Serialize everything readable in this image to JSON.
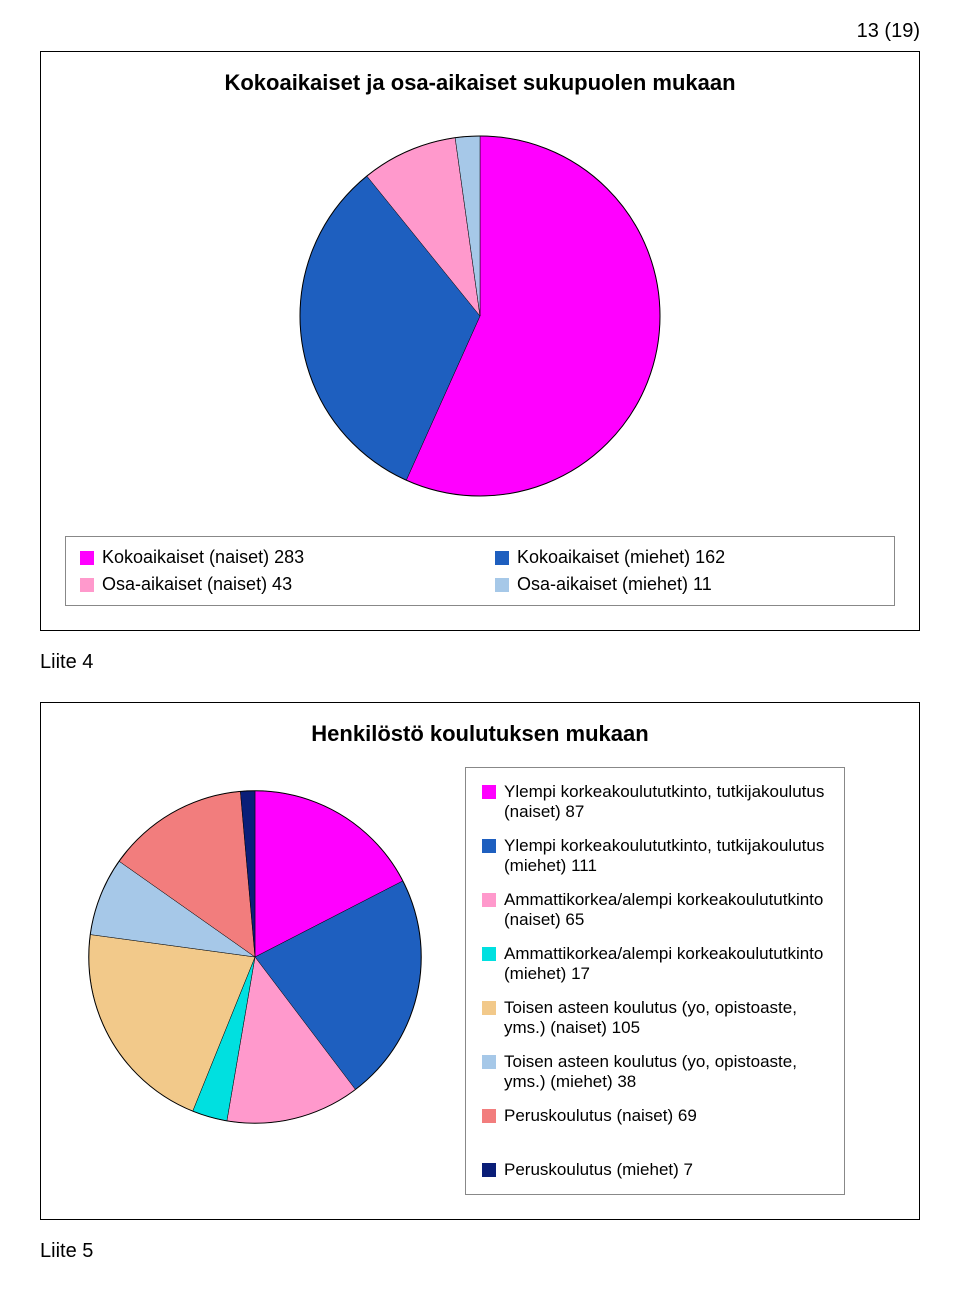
{
  "page_number": "13 (19)",
  "liite4": "Liite 4",
  "liite5": "Liite 5",
  "chart1": {
    "type": "pie",
    "title": "Kokoaikaiset ja osa-aikaiset sukupuolen mukaan",
    "radius": 180,
    "background_color": "#ffffff",
    "border_color": "#000000",
    "legend_border": "#888888",
    "label_fontsize": 18,
    "title_fontsize": 22,
    "segments": [
      {
        "label": "Kokoaikaiset (naiset)  283",
        "value": 283,
        "color": "#ff00ff"
      },
      {
        "label": "Kokoaikaiset (miehet)  162",
        "value": 162,
        "color": "#1e5fbf"
      },
      {
        "label": "Osa-aikaiset (naiset)  43",
        "value": 43,
        "color": "#ff99cc"
      },
      {
        "label": "Osa-aikaiset (miehet)  11",
        "value": 11,
        "color": "#a6c8e8"
      }
    ],
    "legend_order": [
      0,
      1,
      2,
      3
    ],
    "start_angle_deg": 0
  },
  "chart2": {
    "type": "pie",
    "title": "Henkilöstö koulutuksen mukaan",
    "radius": 175,
    "background_color": "#ffffff",
    "border_color": "#000000",
    "legend_border": "#888888",
    "label_fontsize": 17,
    "title_fontsize": 22,
    "segments": [
      {
        "label": "Ylempi korkeakoulututkinto, tutkijakoulutus (naiset)  87",
        "value": 87,
        "color": "#ff00ff"
      },
      {
        "label": "Ylempi korkeakoulututkinto, tutkijakoulutus (miehet) 111",
        "value": 111,
        "color": "#1e5fbf"
      },
      {
        "label": "Ammattikorkea/alempi korkeakoulututkinto (naiset) 65",
        "value": 65,
        "color": "#ff99cc"
      },
      {
        "label": "Ammattikorkea/alempi korkeakoulututkinto (miehet) 17",
        "value": 17,
        "color": "#00e0e0"
      },
      {
        "label": "Toisen asteen koulutus (yo, opistoaste, yms.) (naiset) 105",
        "value": 105,
        "color": "#f2c98a"
      },
      {
        "label": "Toisen asteen koulutus (yo, opistoaste, yms.) (miehet) 38",
        "value": 38,
        "color": "#a6c8e8"
      },
      {
        "label": "Peruskoulutus (naiset) 69",
        "value": 69,
        "color": "#f27d7d"
      },
      {
        "label": "Peruskoulutus (miehet) 7",
        "value": 7,
        "color": "#0a1e78"
      }
    ],
    "start_angle_deg": 0
  }
}
